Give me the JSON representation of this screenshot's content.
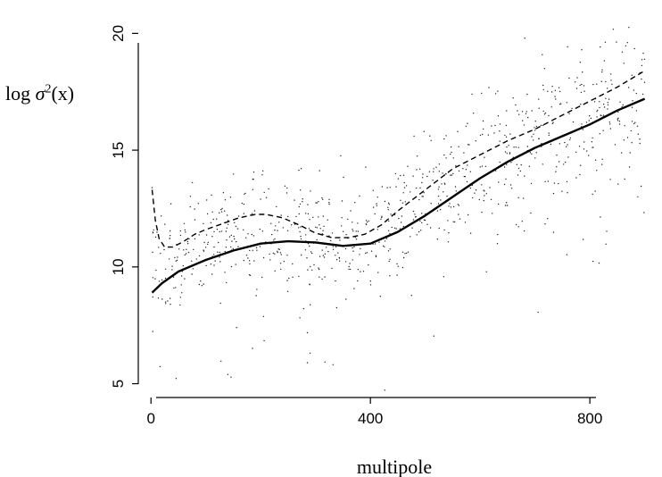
{
  "chart_data": {
    "type": "scatter",
    "title": "",
    "xlabel": "multipole",
    "ylabel": "log σ²(x)",
    "ylabel_parts": {
      "prefix": "log ",
      "sym": "σ",
      "sup": "2",
      "arg": "(x)"
    },
    "xlim": [
      -15,
      912
    ],
    "ylim": [
      4.6,
      21.2
    ],
    "xticks": [
      0,
      400,
      800
    ],
    "yticks": [
      5,
      10,
      15,
      20
    ],
    "grid": false,
    "legend": "none",
    "series": [
      {
        "style": "solid",
        "x": [
          2,
          20,
          50,
          80,
          100,
          150,
          200,
          250,
          300,
          350,
          400,
          450,
          500,
          550,
          600,
          650,
          700,
          750,
          800,
          850,
          900
        ],
        "y": [
          8.9,
          9.3,
          9.8,
          10.1,
          10.3,
          10.7,
          11.0,
          11.1,
          11.05,
          10.9,
          11.0,
          11.5,
          12.2,
          13.0,
          13.8,
          14.5,
          15.1,
          15.6,
          16.1,
          16.7,
          17.2
        ]
      },
      {
        "style": "dashed",
        "x": [
          2,
          8,
          15,
          25,
          40,
          60,
          80,
          100,
          130,
          160,
          190,
          210,
          240,
          270,
          300,
          330,
          360,
          390,
          420,
          450,
          500,
          550,
          600,
          650,
          700,
          750,
          800,
          850,
          900
        ],
        "y": [
          13.3,
          12.0,
          11.2,
          10.85,
          10.85,
          11.1,
          11.4,
          11.6,
          11.85,
          12.1,
          12.25,
          12.25,
          12.1,
          11.8,
          11.45,
          11.25,
          11.25,
          11.4,
          11.8,
          12.4,
          13.3,
          14.2,
          14.8,
          15.4,
          15.9,
          16.5,
          17.1,
          17.7,
          18.4
        ]
      }
    ],
    "scatter_seed": 7,
    "scatter_count": 900
  }
}
